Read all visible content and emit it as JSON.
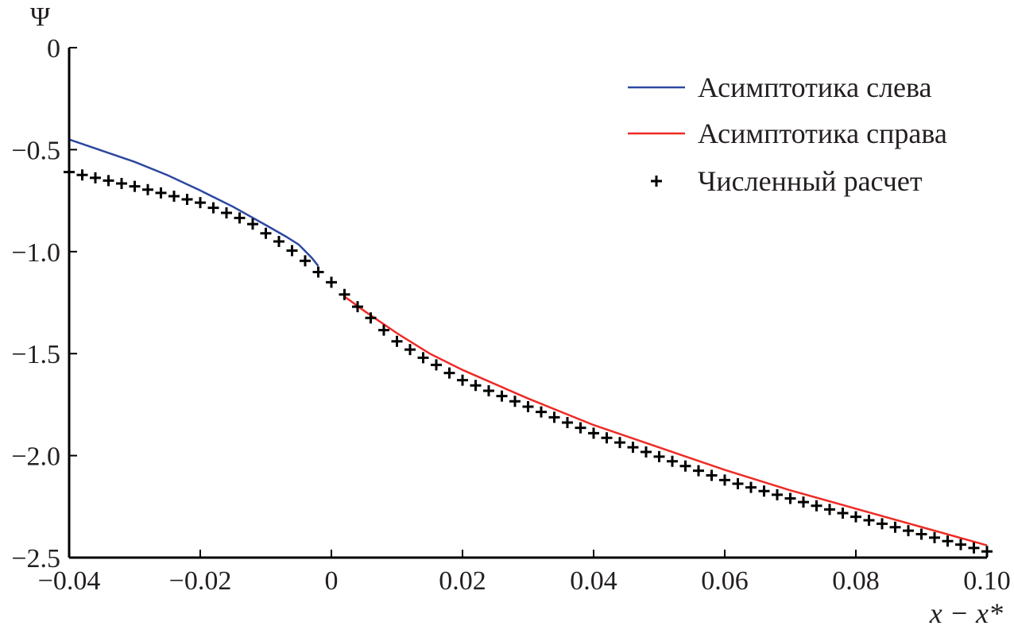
{
  "chart_data": {
    "type": "line",
    "title": "",
    "xlabel": "x − x*",
    "ylabel": "Ψ",
    "xlim": [
      -0.04,
      0.1
    ],
    "ylim": [
      -2.5,
      0
    ],
    "xticks": [
      -0.04,
      -0.02,
      0,
      0.02,
      0.04,
      0.06,
      0.08,
      0.1
    ],
    "xtick_labels": [
      "−0.04",
      "−0.02",
      "0",
      "0.02",
      "0.04",
      "0.06",
      "0.08",
      "0.10"
    ],
    "yticks": [
      0,
      -0.5,
      -1.0,
      -1.5,
      -2.0,
      -2.5
    ],
    "ytick_labels": [
      "0",
      "−0.5",
      "−1.0",
      "−1.5",
      "−2.0",
      "−2.5"
    ],
    "grid": false,
    "legend_position": "top-right",
    "series": [
      {
        "name": "Асимптотика слева",
        "kind": "line",
        "color": "#2e48a0",
        "x": [
          -0.04,
          -0.035,
          -0.03,
          -0.025,
          -0.02,
          -0.015,
          -0.01,
          -0.007,
          -0.005,
          -0.003,
          -0.002
        ],
        "y": [
          -0.45,
          -0.505,
          -0.56,
          -0.625,
          -0.7,
          -0.78,
          -0.87,
          -0.925,
          -0.965,
          -1.03,
          -1.07
        ]
      },
      {
        "name": "Асимптотика справа",
        "kind": "line",
        "color": "#ee2a24",
        "x": [
          0.002,
          0.005,
          0.01,
          0.015,
          0.02,
          0.03,
          0.04,
          0.05,
          0.06,
          0.07,
          0.08,
          0.09,
          0.1
        ],
        "y": [
          -1.22,
          -1.29,
          -1.4,
          -1.5,
          -1.58,
          -1.72,
          -1.85,
          -1.96,
          -2.07,
          -2.17,
          -2.26,
          -2.35,
          -2.44
        ]
      },
      {
        "name": "Численный расчет",
        "kind": "scatter",
        "marker": "+",
        "color": "#000000",
        "x": [
          -0.04,
          -0.038,
          -0.036,
          -0.034,
          -0.032,
          -0.03,
          -0.028,
          -0.026,
          -0.024,
          -0.022,
          -0.02,
          -0.018,
          -0.016,
          -0.014,
          -0.012,
          -0.01,
          -0.008,
          -0.006,
          -0.004,
          -0.002,
          0,
          0.002,
          0.004,
          0.006,
          0.008,
          0.01,
          0.012,
          0.014,
          0.016,
          0.018,
          0.02,
          0.022,
          0.024,
          0.026,
          0.028,
          0.03,
          0.032,
          0.034,
          0.036,
          0.038,
          0.04,
          0.042,
          0.044,
          0.046,
          0.048,
          0.05,
          0.052,
          0.054,
          0.056,
          0.058,
          0.06,
          0.062,
          0.064,
          0.066,
          0.068,
          0.07,
          0.072,
          0.074,
          0.076,
          0.078,
          0.08,
          0.082,
          0.084,
          0.086,
          0.088,
          0.09,
          0.092,
          0.094,
          0.096,
          0.098,
          0.1
        ],
        "y": [
          -0.61,
          -0.624,
          -0.638,
          -0.652,
          -0.666,
          -0.68,
          -0.696,
          -0.712,
          -0.728,
          -0.744,
          -0.76,
          -0.785,
          -0.81,
          -0.835,
          -0.865,
          -0.91,
          -0.95,
          -0.995,
          -1.045,
          -1.1,
          -1.15,
          -1.21,
          -1.27,
          -1.325,
          -1.385,
          -1.44,
          -1.48,
          -1.52,
          -1.555,
          -1.595,
          -1.63,
          -1.656,
          -1.682,
          -1.708,
          -1.734,
          -1.76,
          -1.786,
          -1.812,
          -1.838,
          -1.864,
          -1.89,
          -1.913,
          -1.936,
          -1.959,
          -1.982,
          -2.005,
          -2.028,
          -2.051,
          -2.074,
          -2.097,
          -2.12,
          -2.138,
          -2.156,
          -2.174,
          -2.192,
          -2.21,
          -2.228,
          -2.246,
          -2.264,
          -2.282,
          -2.3,
          -2.317,
          -2.334,
          -2.351,
          -2.368,
          -2.385,
          -2.402,
          -2.419,
          -2.436,
          -2.453,
          -2.47
        ]
      }
    ]
  }
}
